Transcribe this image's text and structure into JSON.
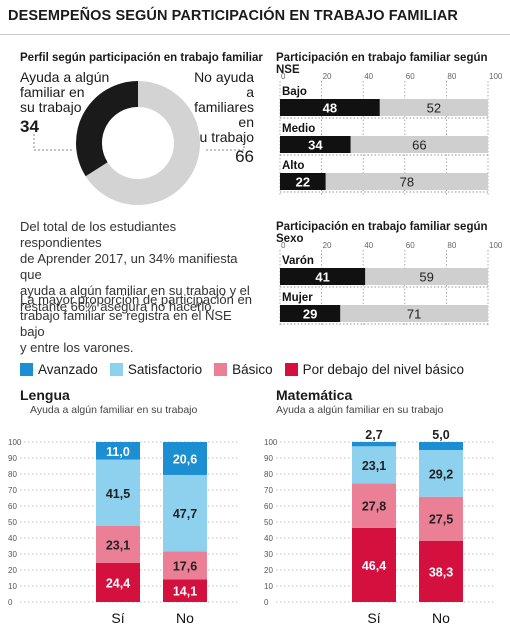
{
  "title": "DESEMPEÑOS SEGÚN PARTICIPACIÓN EN TRABAJO FAMILIAR",
  "donut": {
    "subtitle": "Perfil según participación en trabajo familiar",
    "left_label": [
      "Ayuda a algún",
      "familiar en",
      "su trabajo"
    ],
    "left_value": "34",
    "right_label": [
      "No ayuda a",
      "familiares en",
      "su trabajo"
    ],
    "right_value": "66",
    "colors": {
      "ayuda": "#1a1a1a",
      "no_ayuda": "#d3d3d3"
    }
  },
  "paragraphs": {
    "p1": [
      "Del total de los estudiantes respondientes",
      "de Aprender 2017, un 34% manifiesta que",
      "ayuda a algún familiar en su trabajo y el",
      "restante 66% asegura no hacerlo."
    ],
    "p2": [
      "La mayor proporción de participación en",
      "trabajo familiar se registra en el NSE bajo",
      "y entre los varones."
    ]
  },
  "legend": [
    {
      "label": "Avanzado",
      "color": "#1b8fd2"
    },
    {
      "label": "Satisfactorio",
      "color": "#8ed1ee"
    },
    {
      "label": "Básico",
      "color": "#ea7f95"
    },
    {
      "label": "Por debajo del nivel básico",
      "color": "#d4103f"
    }
  ],
  "chart_data": [
    {
      "type": "bar",
      "orientation": "horizontal",
      "stacked": true,
      "title": "Participación en trabajo familiar según NSE",
      "categories": [
        "Bajo",
        "Medio",
        "Alto"
      ],
      "series": [
        {
          "values": [
            48,
            34,
            22
          ],
          "color": "#111111"
        },
        {
          "values": [
            52,
            66,
            78
          ],
          "color": "#cfcfcf"
        }
      ],
      "xlim": [
        0,
        100
      ],
      "xticks": [
        "0",
        "20",
        "40",
        "60",
        "80",
        "100"
      ]
    },
    {
      "type": "bar",
      "orientation": "horizontal",
      "stacked": true,
      "title": "Participación en trabajo familiar según Sexo",
      "categories": [
        "Varón",
        "Mujer"
      ],
      "series": [
        {
          "values": [
            41,
            29
          ],
          "color": "#111111"
        },
        {
          "values": [
            59,
            71
          ],
          "color": "#cfcfcf"
        }
      ],
      "xlim": [
        0,
        100
      ],
      "xticks": [
        "0",
        "20",
        "40",
        "60",
        "80",
        "100"
      ]
    },
    {
      "type": "bar",
      "stacked": true,
      "title": "Lengua",
      "subtitle": "Ayuda a algún familiar en su trabajo",
      "categories": [
        "Sí",
        "No"
      ],
      "series": [
        {
          "name": "Por debajo del nivel básico",
          "values": [
            24.4,
            14.1
          ],
          "labels": [
            "24,4",
            "14,1"
          ]
        },
        {
          "name": "Básico",
          "values": [
            23.1,
            17.6
          ],
          "labels": [
            "23,1",
            "17,6"
          ]
        },
        {
          "name": "Satisfactorio",
          "values": [
            41.5,
            47.7
          ],
          "labels": [
            "41,5",
            "47,7"
          ]
        },
        {
          "name": "Avanzado",
          "values": [
            11.0,
            20.6
          ],
          "labels": [
            "11,0",
            "20,6"
          ]
        }
      ],
      "ylim": [
        0,
        100
      ],
      "yticks": [
        "0",
        "10",
        "20",
        "30",
        "40",
        "50",
        "60",
        "70",
        "80",
        "90",
        "100"
      ]
    },
    {
      "type": "bar",
      "stacked": true,
      "title": "Matemática",
      "subtitle": "Ayuda a algún familiar en su trabajo",
      "categories": [
        "Sí",
        "No"
      ],
      "series": [
        {
          "name": "Por debajo del nivel básico",
          "values": [
            46.4,
            38.3
          ],
          "labels": [
            "46,4",
            "38,3"
          ]
        },
        {
          "name": "Básico",
          "values": [
            27.8,
            27.5
          ],
          "labels": [
            "27,8",
            "27,5"
          ]
        },
        {
          "name": "Satisfactorio",
          "values": [
            23.1,
            29.2
          ],
          "labels": [
            "23,1",
            "29,2"
          ]
        },
        {
          "name": "Avanzado",
          "values": [
            2.7,
            5.0
          ],
          "labels": [
            "2,7",
            "5,0"
          ]
        }
      ],
      "ylim": [
        0,
        100
      ],
      "yticks": [
        "0",
        "10",
        "20",
        "30",
        "40",
        "50",
        "60",
        "70",
        "80",
        "90",
        "100"
      ]
    }
  ]
}
